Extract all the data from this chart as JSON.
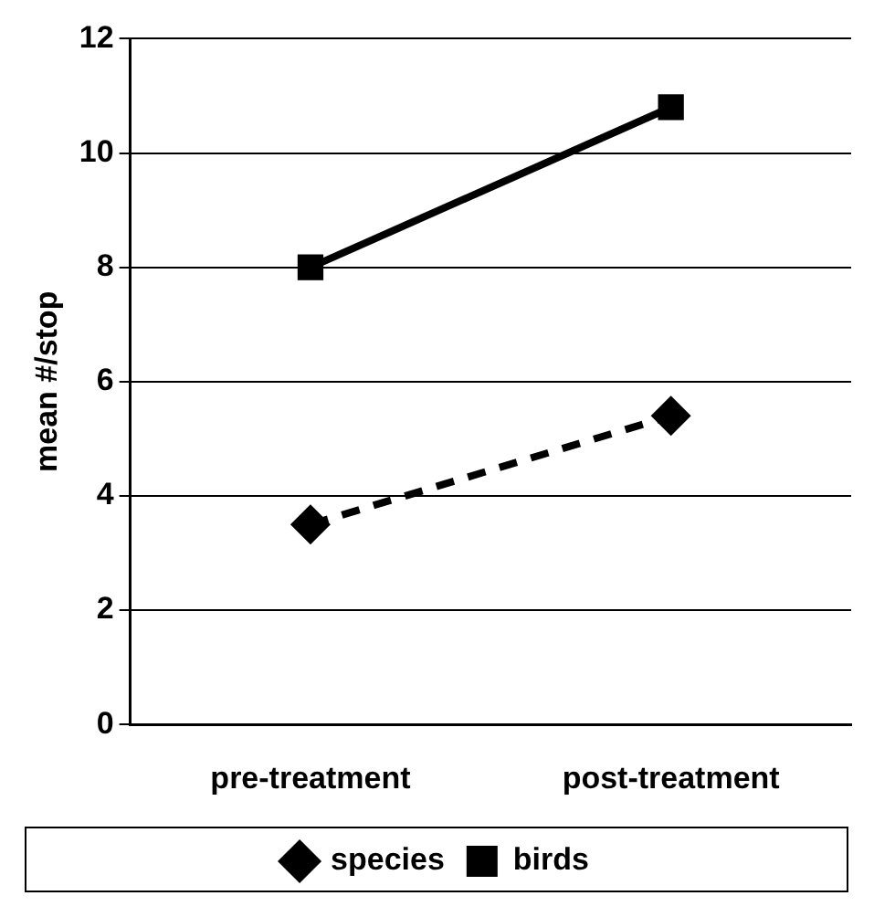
{
  "chart_data": {
    "type": "line",
    "ylabel": "mean #/stop",
    "categories": [
      "pre-treatment",
      "post-treatment"
    ],
    "series": [
      {
        "name": "species",
        "color": "#000000",
        "values": [
          3.5,
          5.4
        ],
        "marker": "diamond",
        "line_style": "dashed"
      },
      {
        "name": "birds",
        "color": "#000000",
        "values": [
          8.0,
          10.8
        ],
        "marker": "square",
        "line_style": "solid"
      }
    ],
    "ylim": [
      0,
      12
    ],
    "yticks": [
      0,
      2,
      4,
      6,
      8,
      10,
      12
    ],
    "grid": "y",
    "legend": "bottom"
  }
}
